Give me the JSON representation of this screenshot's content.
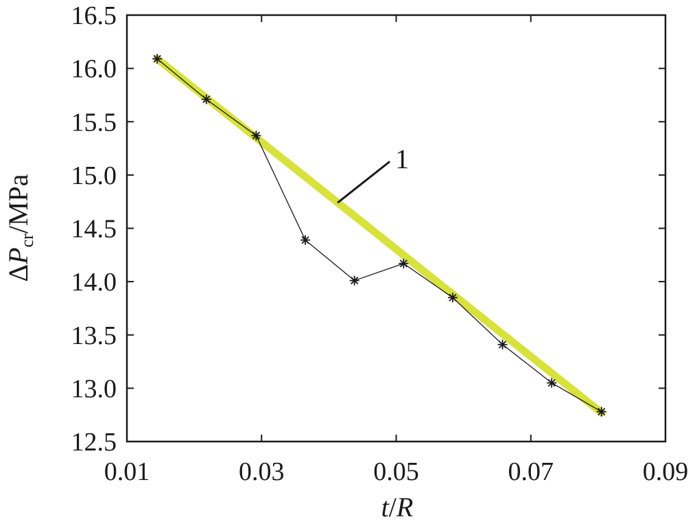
{
  "chart_data": {
    "type": "line",
    "xlabel": {
      "italic": "t",
      "rest": "/",
      "italic2": "R"
    },
    "ylabel": {
      "delta": "Δ",
      "italic": "P",
      "sub": "cr",
      "rest": "/MPa"
    },
    "xlim": [
      0.01,
      0.09
    ],
    "ylim": [
      12.5,
      16.5
    ],
    "x_ticks": [
      "0.01",
      "0.03",
      "0.05",
      "0.07",
      "0.09"
    ],
    "x_tick_values": [
      0.01,
      0.03,
      0.05,
      0.07,
      0.09
    ],
    "y_ticks": [
      "12.5",
      "13.0",
      "13.5",
      "14.0",
      "14.5",
      "15.0",
      "15.5",
      "16.0",
      "16.5"
    ],
    "y_tick_values": [
      12.5,
      13.0,
      13.5,
      14.0,
      14.5,
      15.0,
      15.5,
      16.0,
      16.5
    ],
    "grid": false,
    "series": [
      {
        "style": "thick-line",
        "color": "#d7e23a",
        "x": [
          0.0145,
          0.0805
        ],
        "y": [
          16.09,
          12.77
        ]
      },
      {
        "style": "line-with-star-markers",
        "color": "#1a1a1a",
        "x": [
          0.0145,
          0.0218,
          0.0292,
          0.0365,
          0.0438,
          0.0511,
          0.0584,
          0.0658,
          0.0731,
          0.0805
        ],
        "y": [
          16.09,
          15.71,
          15.37,
          14.39,
          14.01,
          14.17,
          13.85,
          13.41,
          13.05,
          12.78
        ]
      }
    ],
    "annotation": {
      "text": "1",
      "x": 0.0413,
      "y": 14.74
    }
  }
}
